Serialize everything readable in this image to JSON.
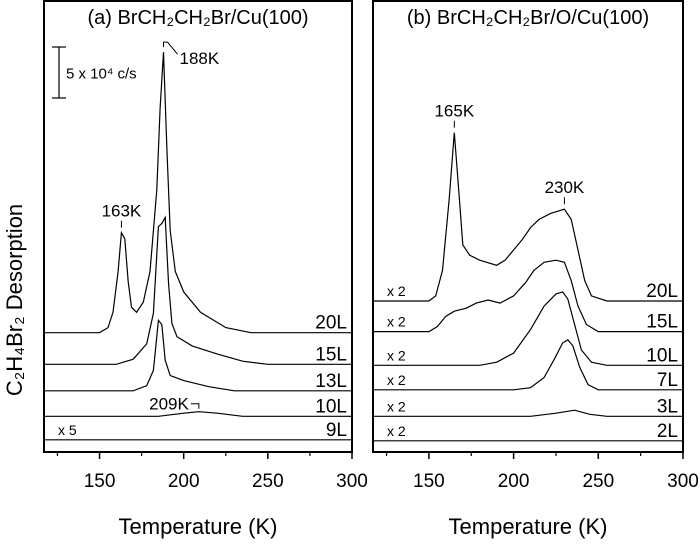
{
  "chart_data": [
    {
      "type": "line",
      "title": "(a) BrCH₂CH₂Br/Cu(100)",
      "xlabel": "Temperature (K)",
      "ylabel": "C₂H₄Br₂ Desorption",
      "xlim": [
        117,
        300
      ],
      "xticks": [
        150,
        200,
        250,
        300
      ],
      "minor_xticks": [
        125,
        175,
        225,
        275
      ],
      "y_units": "x 10^4 c/s (offset traces)",
      "ylim": [
        0,
        44.3
      ],
      "scale_bar": {
        "label": "5 x 10⁴ c/s",
        "value": 5
      },
      "series": [
        {
          "name": "20L",
          "offset": 11.7,
          "multiplier": "",
          "points": [
            [
              117,
              0
            ],
            [
              150,
              0
            ],
            [
              155,
              0.5
            ],
            [
              158,
              2
            ],
            [
              161,
              6
            ],
            [
              163,
              9.8
            ],
            [
              165,
              9.2
            ],
            [
              167,
              5
            ],
            [
              169,
              2.5
            ],
            [
              172,
              2.0
            ],
            [
              176,
              3
            ],
            [
              180,
              6
            ],
            [
              184,
              14
            ],
            [
              186,
              22
            ],
            [
              188,
              27.5
            ],
            [
              190,
              18
            ],
            [
              192,
              10
            ],
            [
              195,
              6
            ],
            [
              200,
              4
            ],
            [
              210,
              2
            ],
            [
              225,
              0.5
            ],
            [
              240,
              0
            ],
            [
              300,
              0
            ]
          ]
        },
        {
          "name": "15L",
          "offset": 8.6,
          "multiplier": "",
          "points": [
            [
              117,
              0
            ],
            [
              160,
              0
            ],
            [
              170,
              0.5
            ],
            [
              178,
              2
            ],
            [
              182,
              5
            ],
            [
              185,
              13.5
            ],
            [
              187,
              13.8
            ],
            [
              189,
              14.4
            ],
            [
              191,
              8
            ],
            [
              193,
              4
            ],
            [
              196,
              2.7
            ],
            [
              205,
              1.8
            ],
            [
              220,
              1
            ],
            [
              235,
              0.3
            ],
            [
              250,
              0
            ],
            [
              300,
              0
            ]
          ]
        },
        {
          "name": "13L",
          "offset": 6.0,
          "multiplier": "",
          "points": [
            [
              117,
              0
            ],
            [
              170,
              0
            ],
            [
              178,
              0.5
            ],
            [
              182,
              2
            ],
            [
              185,
              6.9
            ],
            [
              187,
              6.5
            ],
            [
              189,
              3
            ],
            [
              192,
              1.5
            ],
            [
              200,
              1
            ],
            [
              215,
              0.4
            ],
            [
              230,
              0
            ],
            [
              300,
              0
            ]
          ]
        },
        {
          "name": "10L",
          "offset": 3.5,
          "multiplier": "",
          "points": [
            [
              117,
              0
            ],
            [
              185,
              0
            ],
            [
              200,
              0.3
            ],
            [
              209,
              0.45
            ],
            [
              220,
              0.3
            ],
            [
              235,
              0
            ],
            [
              300,
              0
            ]
          ]
        },
        {
          "name": "9L",
          "offset": 1.2,
          "multiplier": "x 5",
          "points": [
            [
              117,
              0
            ],
            [
              300,
              0
            ]
          ]
        }
      ],
      "annotations": [
        {
          "text": "188K",
          "x": 188
        },
        {
          "text": "163K",
          "x": 163
        },
        {
          "text": "209K",
          "x": 209
        }
      ]
    },
    {
      "type": "line",
      "title": "(b) BrCH₂CH₂Br/O/Cu(100)",
      "xlabel": "Temperature (K)",
      "xlim": [
        117,
        300
      ],
      "xticks": [
        150,
        200,
        250,
        300
      ],
      "minor_xticks": [
        125,
        175,
        225,
        275
      ],
      "y_units": "x 10^4 c/s (offset traces)",
      "ylim": [
        0,
        44.3
      ],
      "series": [
        {
          "name": "20L",
          "offset": 14.8,
          "multiplier": "x 2",
          "points": [
            [
              117,
              0
            ],
            [
              150,
              0
            ],
            [
              154,
              0.5
            ],
            [
              158,
              3
            ],
            [
              162,
              10
            ],
            [
              165,
              16.5
            ],
            [
              168,
              10
            ],
            [
              170,
              5.5
            ],
            [
              174,
              4.5
            ],
            [
              180,
              4
            ],
            [
              190,
              3.5
            ],
            [
              195,
              4
            ],
            [
              200,
              5
            ],
            [
              205,
              6
            ],
            [
              210,
              7.2
            ],
            [
              215,
              8
            ],
            [
              222,
              8.6
            ],
            [
              230,
              9.0
            ],
            [
              234,
              8
            ],
            [
              238,
              5
            ],
            [
              242,
              2
            ],
            [
              246,
              0.5
            ],
            [
              255,
              0
            ],
            [
              300,
              0
            ]
          ]
        },
        {
          "name": "15L",
          "offset": 11.8,
          "multiplier": "x 2",
          "points": [
            [
              117,
              0
            ],
            [
              150,
              0
            ],
            [
              155,
              0.5
            ],
            [
              160,
              1.5
            ],
            [
              165,
              2
            ],
            [
              172,
              2.3
            ],
            [
              178,
              2.8
            ],
            [
              185,
              3.1
            ],
            [
              192,
              2.8
            ],
            [
              200,
              3.5
            ],
            [
              207,
              4.8
            ],
            [
              212,
              6
            ],
            [
              218,
              6.8
            ],
            [
              225,
              7.0
            ],
            [
              230,
              6.8
            ],
            [
              234,
              5
            ],
            [
              238,
              2.5
            ],
            [
              243,
              0.7
            ],
            [
              250,
              0
            ],
            [
              300,
              0
            ]
          ]
        },
        {
          "name": "10L",
          "offset": 8.5,
          "multiplier": "x 2",
          "points": [
            [
              117,
              0
            ],
            [
              180,
              0
            ],
            [
              190,
              0.3
            ],
            [
              200,
              1.2
            ],
            [
              210,
              3.5
            ],
            [
              218,
              5.8
            ],
            [
              225,
              7.0
            ],
            [
              229,
              7.2
            ],
            [
              232,
              6.5
            ],
            [
              236,
              4
            ],
            [
              240,
              1.5
            ],
            [
              246,
              0.3
            ],
            [
              255,
              0
            ],
            [
              300,
              0
            ]
          ]
        },
        {
          "name": "7L",
          "offset": 6.1,
          "multiplier": "x 2",
          "points": [
            [
              117,
              0
            ],
            [
              200,
              0
            ],
            [
              210,
              0.2
            ],
            [
              218,
              1.2
            ],
            [
              224,
              3
            ],
            [
              229,
              4.6
            ],
            [
              232,
              4.9
            ],
            [
              235,
              4.3
            ],
            [
              239,
              2.2
            ],
            [
              244,
              0.5
            ],
            [
              250,
              0
            ],
            [
              300,
              0
            ]
          ]
        },
        {
          "name": "3L",
          "offset": 3.5,
          "multiplier": "x 2",
          "points": [
            [
              117,
              0
            ],
            [
              210,
              0
            ],
            [
              225,
              0.3
            ],
            [
              236,
              0.6
            ],
            [
              245,
              0.2
            ],
            [
              255,
              0
            ],
            [
              300,
              0
            ]
          ]
        },
        {
          "name": "2L",
          "offset": 1.1,
          "multiplier": "x 2",
          "points": [
            [
              117,
              0
            ],
            [
              300,
              0
            ]
          ]
        }
      ],
      "annotations": [
        {
          "text": "165K",
          "x": 165
        },
        {
          "text": "230K",
          "x": 230
        }
      ]
    }
  ]
}
